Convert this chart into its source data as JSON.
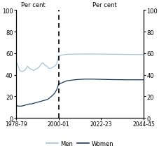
{
  "ylabel_left": "Per cent",
  "ylabel_right": "Per cent",
  "xtick_labels": [
    "1978-79",
    "2000-01",
    "2022-23",
    "2044-45"
  ],
  "xtick_positions": [
    0,
    1,
    2,
    3
  ],
  "ylim": [
    0,
    100
  ],
  "yticks": [
    0,
    20,
    40,
    60,
    80,
    100
  ],
  "dashed_line_x": 1,
  "men_color": "#a8c4d4",
  "women_color": "#1a3a5c",
  "legend_men": "Men",
  "legend_women": "Women",
  "men_history_x": [
    0.0,
    0.045,
    0.09,
    0.136,
    0.182,
    0.227,
    0.273,
    0.318,
    0.364,
    0.409,
    0.455,
    0.5,
    0.545,
    0.591,
    0.636,
    0.682,
    0.727,
    0.773,
    0.818,
    0.864,
    0.909,
    0.955,
    1.0
  ],
  "men_history_y": [
    53,
    49,
    44,
    43,
    43.5,
    45,
    48,
    46,
    45,
    44,
    45,
    46,
    47,
    50,
    51,
    49,
    48,
    46,
    46,
    47,
    48,
    50,
    57
  ],
  "women_history_x": [
    0.0,
    0.045,
    0.09,
    0.136,
    0.182,
    0.227,
    0.273,
    0.318,
    0.364,
    0.409,
    0.455,
    0.5,
    0.545,
    0.591,
    0.636,
    0.682,
    0.727,
    0.773,
    0.818,
    0.864,
    0.909,
    0.955,
    1.0
  ],
  "women_history_y": [
    12,
    11,
    11,
    11,
    11.5,
    12,
    12.5,
    13,
    13,
    13.5,
    14,
    14.5,
    15,
    15.5,
    16,
    16.5,
    17,
    18,
    19.5,
    21,
    23,
    26,
    31
  ],
  "men_proj_x": [
    1.0,
    1.05,
    1.1,
    1.2,
    1.4,
    1.6,
    1.8,
    2.0,
    2.2,
    2.4,
    2.6,
    2.8,
    3.0
  ],
  "men_proj_y": [
    57,
    58,
    58.5,
    59,
    59.2,
    59.3,
    59.3,
    59.2,
    59.1,
    59.0,
    58.9,
    58.8,
    58.8
  ],
  "women_proj_x": [
    1.0,
    1.05,
    1.1,
    1.2,
    1.4,
    1.6,
    1.8,
    2.0,
    2.2,
    2.4,
    2.6,
    2.8,
    3.0
  ],
  "women_proj_y": [
    31,
    32,
    33,
    34.5,
    35.5,
    36,
    36,
    35.8,
    35.6,
    35.5,
    35.4,
    35.4,
    35.4
  ]
}
